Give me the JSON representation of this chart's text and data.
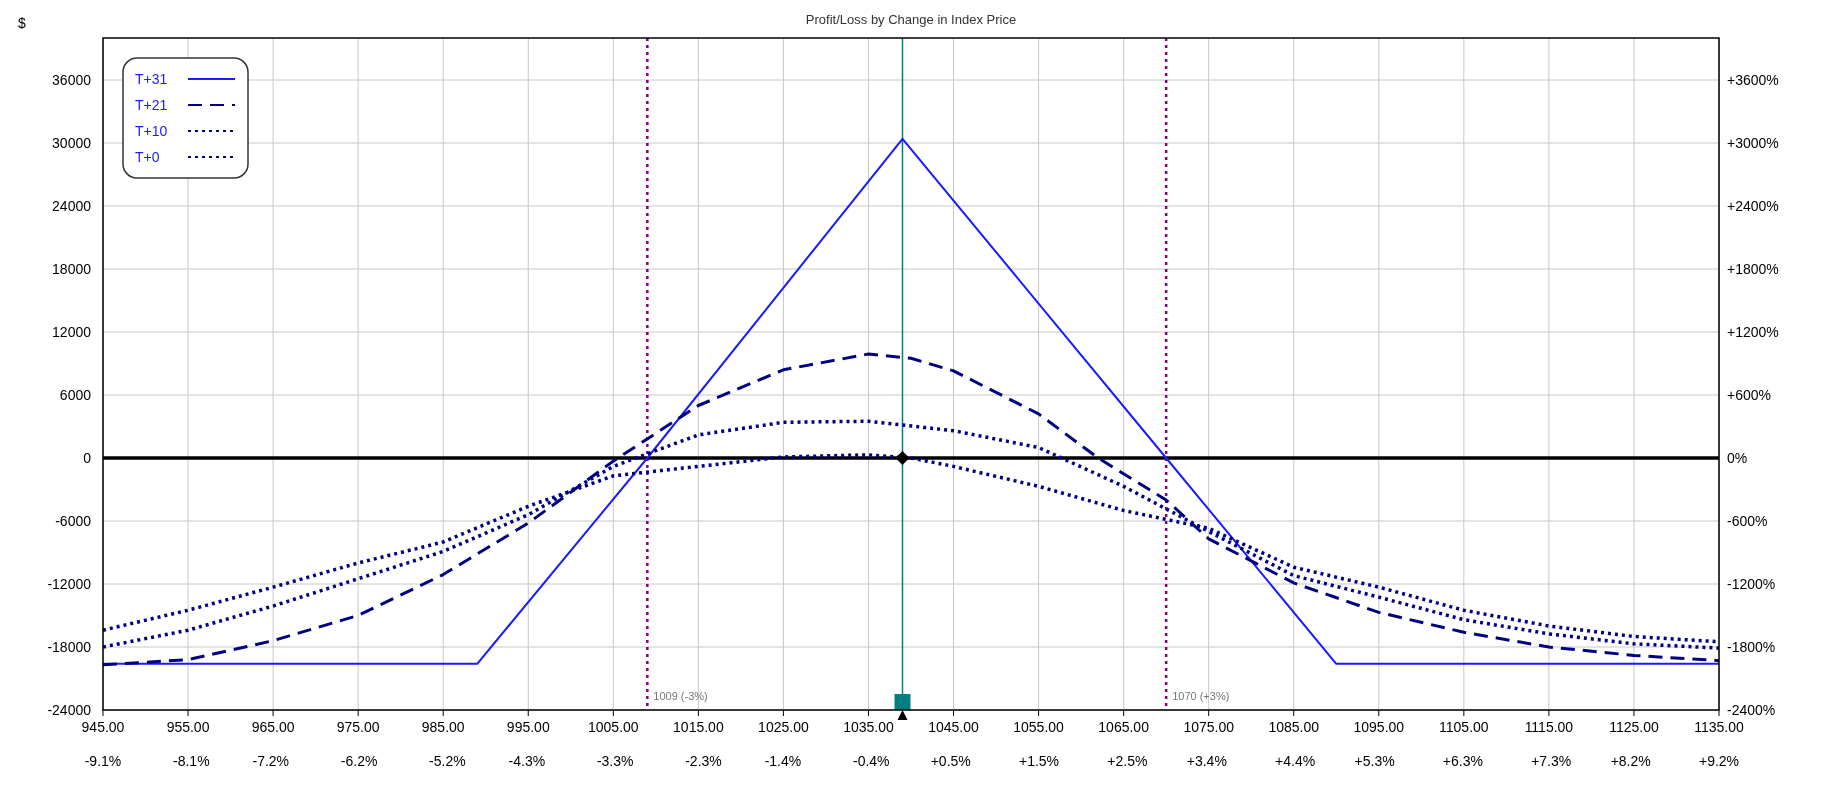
{
  "chart_data": {
    "type": "line",
    "title": "Profit/Loss by Change in Index Price",
    "ylabel": "$",
    "xlim": [
      945,
      1135
    ],
    "xticks": [
      {
        "value": 945,
        "label": "945.00"
      },
      {
        "value": 955,
        "label": "955.00"
      },
      {
        "value": 965,
        "label": "965.00"
      },
      {
        "value": 975,
        "label": "975.00"
      },
      {
        "value": 985,
        "label": "985.00"
      },
      {
        "value": 995,
        "label": "995.00"
      },
      {
        "value": 1005,
        "label": "1005.00"
      },
      {
        "value": 1015,
        "label": "1015.00"
      },
      {
        "value": 1025,
        "label": "1025.00"
      },
      {
        "value": 1035,
        "label": "1035.00"
      },
      {
        "value": 1045,
        "label": "1045.00"
      },
      {
        "value": 1055,
        "label": "1055.00"
      },
      {
        "value": 1065,
        "label": "1065.00"
      },
      {
        "value": 1075,
        "label": "1075.00"
      },
      {
        "value": 1085,
        "label": "1085.00"
      },
      {
        "value": 1095,
        "label": "1095.00"
      },
      {
        "value": 1105,
        "label": "1105.00"
      },
      {
        "value": 1115,
        "label": "1115.00"
      },
      {
        "value": 1125,
        "label": "1125.00"
      },
      {
        "value": 1135,
        "label": "1135.00"
      }
    ],
    "x2lim": [
      -9.1,
      9.2
    ],
    "x2ticks": [
      {
        "value": -9.1,
        "label": "-9.1%"
      },
      {
        "value": -8.1,
        "label": "-8.1%"
      },
      {
        "value": -7.2,
        "label": "-7.2%"
      },
      {
        "value": -6.2,
        "label": "-6.2%"
      },
      {
        "value": -5.2,
        "label": "-5.2%"
      },
      {
        "value": -4.3,
        "label": "-4.3%"
      },
      {
        "value": -3.3,
        "label": "-3.3%"
      },
      {
        "value": -2.3,
        "label": "-2.3%"
      },
      {
        "value": -1.4,
        "label": "-1.4%"
      },
      {
        "value": -0.4,
        "label": "-0.4%"
      },
      {
        "value": 0.5,
        "label": "+0.5%"
      },
      {
        "value": 1.5,
        "label": "+1.5%"
      },
      {
        "value": 2.5,
        "label": "+2.5%"
      },
      {
        "value": 3.4,
        "label": "+3.4%"
      },
      {
        "value": 4.4,
        "label": "+4.4%"
      },
      {
        "value": 5.3,
        "label": "+5.3%"
      },
      {
        "value": 6.3,
        "label": "+6.3%"
      },
      {
        "value": 7.3,
        "label": "+7.3%"
      },
      {
        "value": 8.2,
        "label": "+8.2%"
      },
      {
        "value": 9.2,
        "label": "+9.2%"
      }
    ],
    "ylim": [
      -24000,
      40000
    ],
    "yticks": [
      -24000,
      -18000,
      -12000,
      -6000,
      0,
      6000,
      12000,
      18000,
      24000,
      30000,
      36000
    ],
    "y2lim": [
      -2400,
      4000
    ],
    "y2ticks": [
      {
        "value": -2400,
        "label": "-2400%"
      },
      {
        "value": -1800,
        "label": "-1800%"
      },
      {
        "value": -1200,
        "label": "-1200%"
      },
      {
        "value": -600,
        "label": "-600%"
      },
      {
        "value": 0,
        "label": "0%"
      },
      {
        "value": 600,
        "label": "+600%"
      },
      {
        "value": 1200,
        "label": "+1200%"
      },
      {
        "value": 1800,
        "label": "+1800%"
      },
      {
        "value": 2400,
        "label": "+2400%"
      },
      {
        "value": 3000,
        "label": "+3000%"
      },
      {
        "value": 3600,
        "label": "+3600%"
      }
    ],
    "grid": true,
    "legend": "top left",
    "ref_lines": [
      {
        "axis": "y",
        "value": 0,
        "color": "#000000",
        "line_style": "solid"
      },
      {
        "axis": "x",
        "value": 1009,
        "label": "1009 (-3%)",
        "color": "#800080",
        "line_style": "dotted"
      },
      {
        "axis": "x",
        "value": 1039,
        "color": "#008080",
        "line_style": "solid"
      },
      {
        "axis": "x",
        "value": 1070,
        "label": "1070 (+3%)",
        "color": "#800080",
        "line_style": "dotted"
      }
    ],
    "series": [
      {
        "name": "T+31",
        "color": "#1a1aff",
        "line_style": "solid",
        "x": [
          945,
          989,
          1009,
          1039,
          1070,
          1090,
          1135
        ],
        "values": [
          -19600,
          -19600,
          0,
          30400,
          0,
          -19600,
          -19600
        ]
      },
      {
        "name": "T+21",
        "color": "#000080",
        "line_style": "dashed",
        "x": [
          945,
          955,
          965,
          975,
          985,
          995,
          1005,
          1015,
          1025,
          1035,
          1040,
          1045,
          1055,
          1062,
          1070,
          1075,
          1085,
          1095,
          1105,
          1115,
          1125,
          1135
        ],
        "values": [
          -19700,
          -19200,
          -17400,
          -15000,
          -11100,
          -6200,
          -300,
          5000,
          8400,
          9900,
          9500,
          8300,
          4200,
          0,
          -4000,
          -7700,
          -11900,
          -14700,
          -16600,
          -18000,
          -18800,
          -19300
        ]
      },
      {
        "name": "T+10",
        "color": "#000080",
        "line_style": "dotted",
        "x": [
          945,
          955,
          965,
          975,
          985,
          995,
          1005,
          1015,
          1025,
          1035,
          1045,
          1055,
          1065,
          1075,
          1085,
          1095,
          1105,
          1115,
          1125,
          1135
        ],
        "values": [
          -18000,
          -16400,
          -14100,
          -11500,
          -8900,
          -5400,
          -800,
          2200,
          3400,
          3500,
          2600,
          1000,
          -2700,
          -7000,
          -11200,
          -13250,
          -15400,
          -16750,
          -17700,
          -18100
        ]
      },
      {
        "name": "T+0",
        "color": "#000080",
        "line_style": "dotted",
        "x": [
          945,
          955,
          965,
          975,
          985,
          995,
          1005,
          1015,
          1025,
          1035,
          1040,
          1045,
          1055,
          1065,
          1075,
          1085,
          1095,
          1105,
          1115,
          1125,
          1135
        ],
        "values": [
          -16400,
          -14500,
          -12300,
          -10000,
          -8000,
          -4600,
          -1700,
          -800,
          100,
          300,
          0,
          -800,
          -2700,
          -5000,
          -6700,
          -10400,
          -12300,
          -14500,
          -16000,
          -17000,
          -17500
        ]
      }
    ]
  }
}
